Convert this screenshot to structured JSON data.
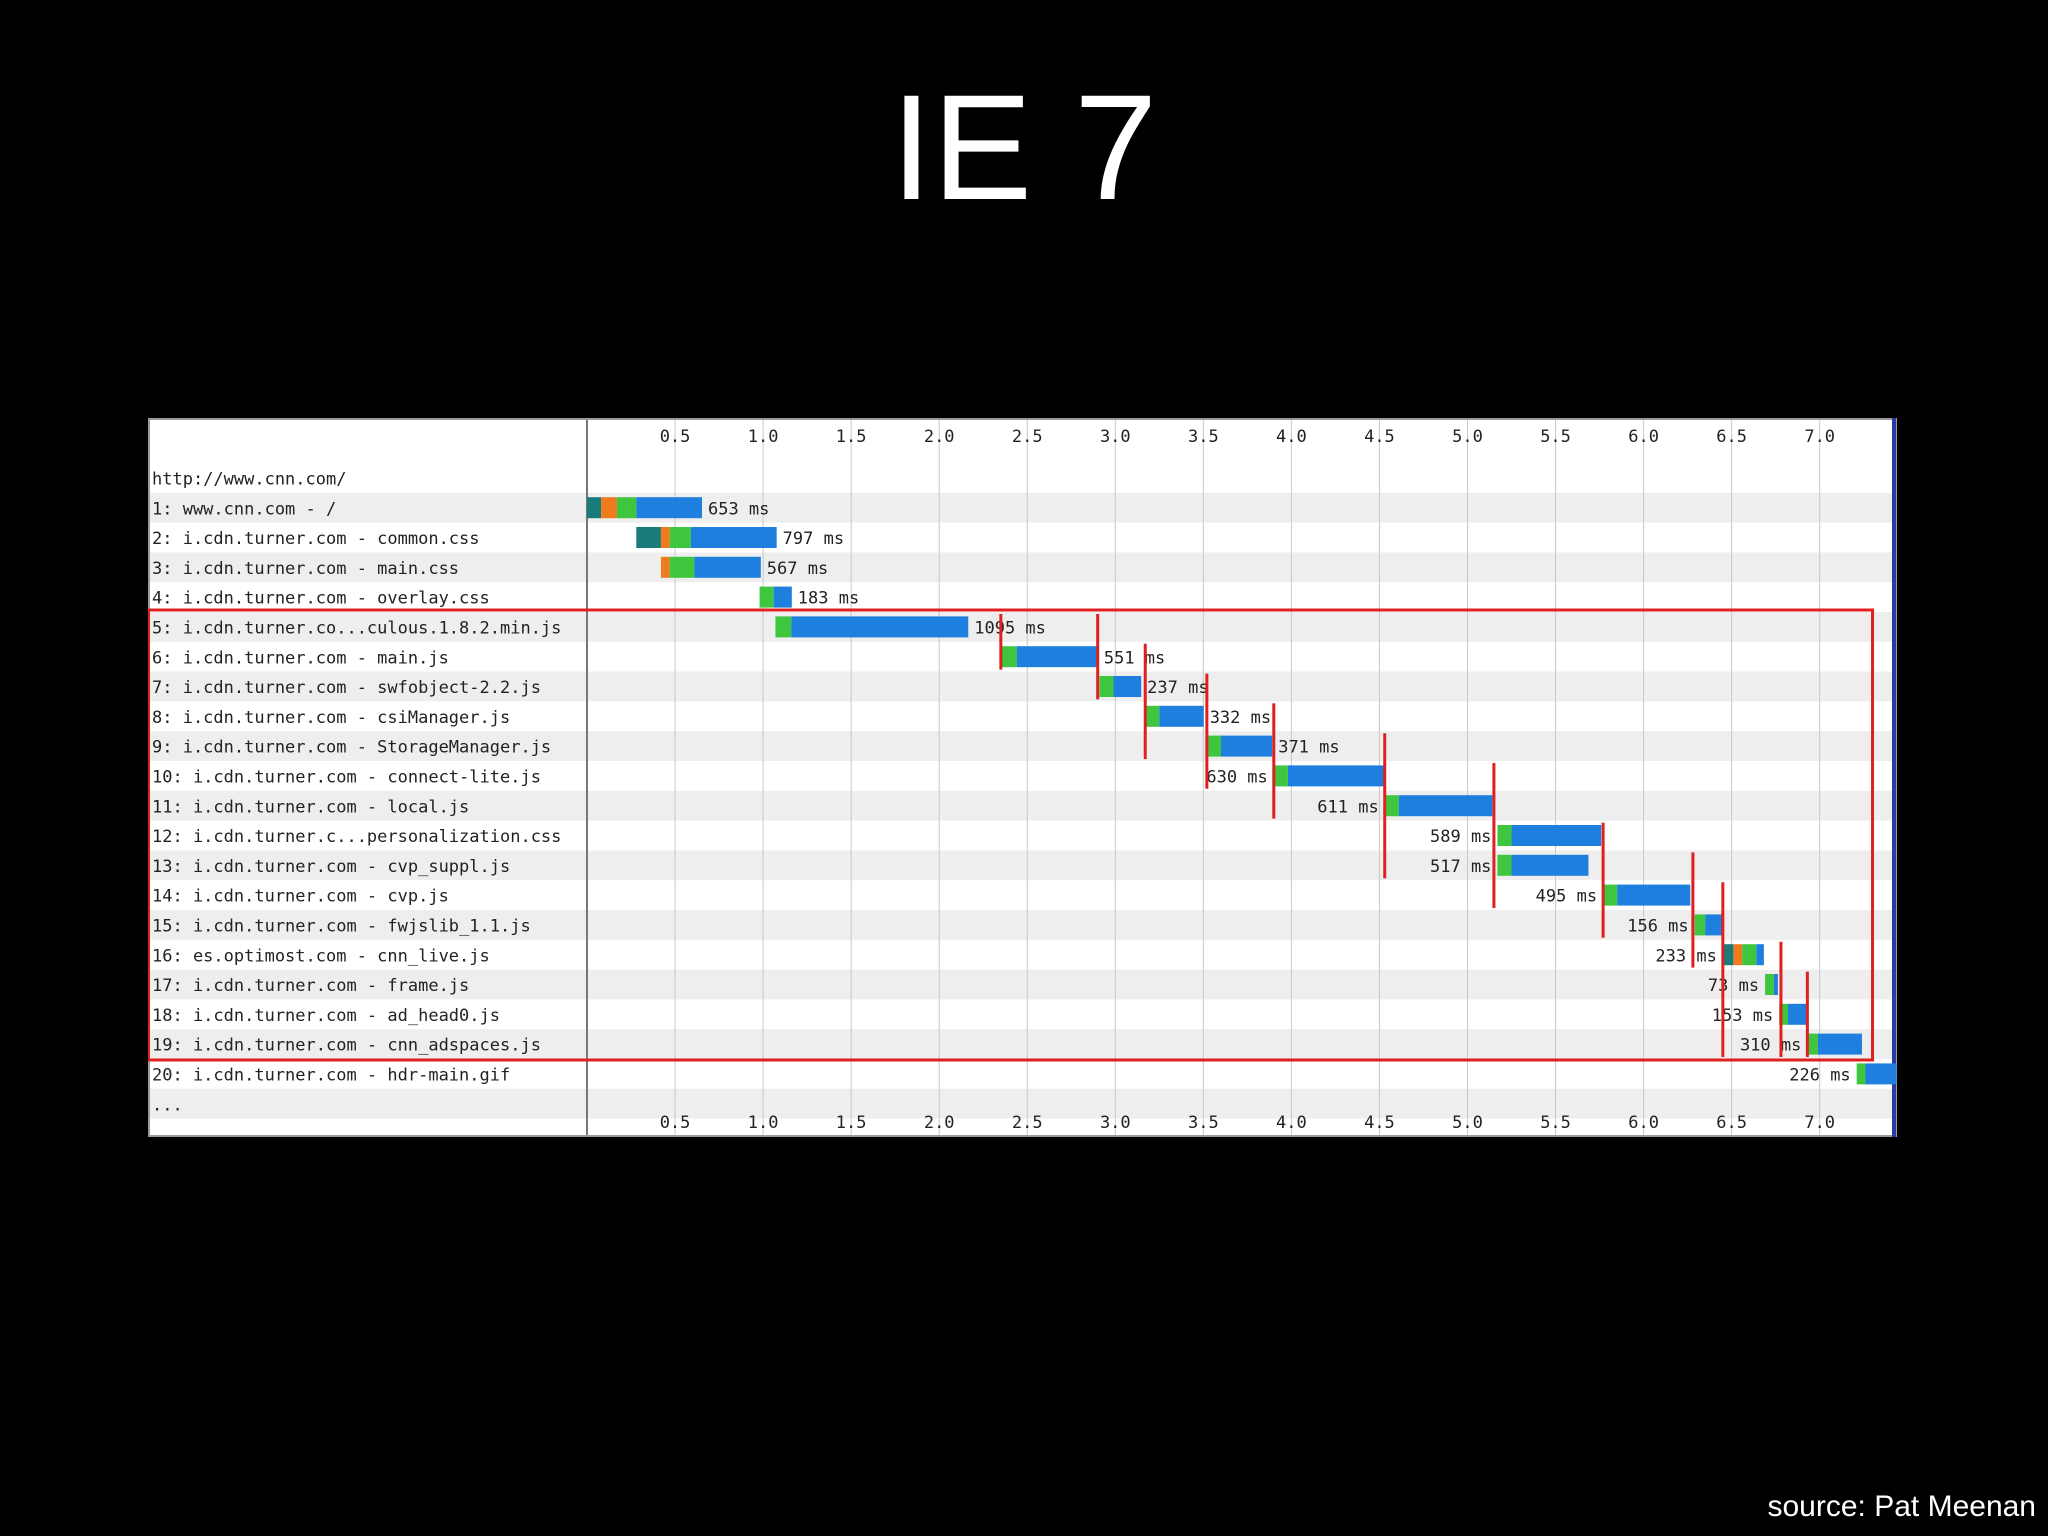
{
  "slide": {
    "title": "IE 7",
    "source": "source: Pat Meenan"
  },
  "chart_data": {
    "type": "waterfall",
    "page_url": "http://www.cnn.com/",
    "xlim": [
      0,
      7.45
    ],
    "x_ticks": [
      "0.5",
      "1.0",
      "1.5",
      "2.0",
      "2.5",
      "3.0",
      "3.5",
      "4.0",
      "4.5",
      "5.0",
      "5.5",
      "6.0",
      "6.5",
      "7.0"
    ],
    "x_unit": "s",
    "grid": true,
    "colors": {
      "dns": "#1a7b7b",
      "connect": "#f07b1e",
      "ttfb": "#3ec63e",
      "download": "#1e7fdf",
      "highlight": "#e02020",
      "row_stripe": "#eeeeee",
      "gridline": "#c8c8c8"
    },
    "requests": [
      {
        "label": "1: www.cnn.com - /",
        "start": 0.0,
        "dns": 0.08,
        "connect": 0.09,
        "ttfb": 0.11,
        "end": 0.653,
        "duration": "653 ms",
        "label_side": "right"
      },
      {
        "label": "2: i.cdn.turner.com - common.css",
        "start": 0.28,
        "dns": 0.14,
        "connect": 0.05,
        "ttfb": 0.12,
        "end": 1.077,
        "duration": "797 ms",
        "label_side": "right"
      },
      {
        "label": "3: i.cdn.turner.com - main.css",
        "start": 0.42,
        "dns": 0.0,
        "connect": 0.05,
        "ttfb": 0.14,
        "end": 0.987,
        "duration": "567 ms",
        "label_side": "right"
      },
      {
        "label": "4: i.cdn.turner.com - overlay.css",
        "start": 0.98,
        "dns": 0.0,
        "connect": 0.0,
        "ttfb": 0.08,
        "end": 1.163,
        "duration": "183 ms",
        "label_side": "right"
      },
      {
        "label": "5: i.cdn.turner.co...culous.1.8.2.min.js",
        "start": 1.07,
        "dns": 0.0,
        "connect": 0.0,
        "ttfb": 0.09,
        "end": 2.165,
        "duration": "1095 ms",
        "label_side": "right"
      },
      {
        "label": "6: i.cdn.turner.com - main.js",
        "start": 2.35,
        "dns": 0.0,
        "connect": 0.0,
        "ttfb": 0.09,
        "end": 2.901,
        "duration": "551 ms",
        "label_side": "right"
      },
      {
        "label": "7: i.cdn.turner.com - swfobject-2.2.js",
        "start": 2.91,
        "dns": 0.0,
        "connect": 0.0,
        "ttfb": 0.08,
        "end": 3.147,
        "duration": "237 ms",
        "label_side": "right"
      },
      {
        "label": "8: i.cdn.turner.com - csiManager.js",
        "start": 3.17,
        "dns": 0.0,
        "connect": 0.0,
        "ttfb": 0.08,
        "end": 3.502,
        "duration": "332 ms",
        "label_side": "right"
      },
      {
        "label": "9: i.cdn.turner.com - StorageManager.js",
        "start": 3.52,
        "dns": 0.0,
        "connect": 0.0,
        "ttfb": 0.08,
        "end": 3.891,
        "duration": "371 ms",
        "label_side": "right"
      },
      {
        "label": "10: i.cdn.turner.com - connect-lite.js",
        "start": 3.9,
        "dns": 0.0,
        "connect": 0.0,
        "ttfb": 0.08,
        "end": 4.53,
        "duration": "630 ms",
        "label_side": "left"
      },
      {
        "label": "11: i.cdn.turner.com - local.js",
        "start": 4.53,
        "dns": 0.0,
        "connect": 0.0,
        "ttfb": 0.08,
        "end": 5.141,
        "duration": "611 ms",
        "label_side": "left"
      },
      {
        "label": "12: i.cdn.turner.c...personalization.css",
        "start": 5.17,
        "dns": 0.0,
        "connect": 0.0,
        "ttfb": 0.08,
        "end": 5.759,
        "duration": "589 ms",
        "label_side": "left"
      },
      {
        "label": "13: i.cdn.turner.com - cvp_suppl.js",
        "start": 5.17,
        "dns": 0.0,
        "connect": 0.0,
        "ttfb": 0.08,
        "end": 5.687,
        "duration": "517 ms",
        "label_side": "left"
      },
      {
        "label": "14: i.cdn.turner.com - cvp.js",
        "start": 5.77,
        "dns": 0.0,
        "connect": 0.0,
        "ttfb": 0.08,
        "end": 6.265,
        "duration": "495 ms",
        "label_side": "left"
      },
      {
        "label": "15: i.cdn.turner.com - fwjslib_1.1.js",
        "start": 6.29,
        "dns": 0.0,
        "connect": 0.0,
        "ttfb": 0.06,
        "end": 6.446,
        "duration": "156 ms",
        "label_side": "left"
      },
      {
        "label": "16: es.optimost.com - cnn_live.js",
        "start": 6.45,
        "dns": 0.06,
        "connect": 0.05,
        "ttfb": 0.08,
        "end": 6.683,
        "duration": "233 ms",
        "label_side": "left"
      },
      {
        "label": "17: i.cdn.turner.com - frame.js",
        "start": 6.69,
        "dns": 0.0,
        "connect": 0.0,
        "ttfb": 0.05,
        "end": 6.763,
        "duration": "73 ms",
        "label_side": "left"
      },
      {
        "label": "18: i.cdn.turner.com - ad_head0.js",
        "start": 6.77,
        "dns": 0.0,
        "connect": 0.0,
        "ttfb": 0.05,
        "end": 6.923,
        "duration": "153 ms",
        "label_side": "left"
      },
      {
        "label": "19: i.cdn.turner.com - cnn_adspaces.js",
        "start": 6.93,
        "dns": 0.0,
        "connect": 0.0,
        "ttfb": 0.06,
        "end": 7.24,
        "duration": "310 ms",
        "label_side": "left"
      },
      {
        "label": "20: i.cdn.turner.com - hdr-main.gif",
        "start": 7.21,
        "dns": 0.0,
        "connect": 0.0,
        "ttfb": 0.05,
        "end": 7.436,
        "duration": "226 ms",
        "label_side": "left"
      }
    ],
    "trailing_row": "...",
    "highlight": {
      "rows": [
        5,
        19
      ],
      "end_time": 7.3,
      "markers": [
        {
          "row_top": 5,
          "row_bottom": 6,
          "time": 2.35
        },
        {
          "row_top": 5,
          "row_bottom": 7,
          "time": 2.9
        },
        {
          "row_top": 6,
          "row_bottom": 9,
          "time": 3.17
        },
        {
          "row_top": 7,
          "row_bottom": 10,
          "time": 3.52
        },
        {
          "row_top": 8,
          "row_bottom": 11,
          "time": 3.9
        },
        {
          "row_top": 9,
          "row_bottom": 13,
          "time": 4.53
        },
        {
          "row_top": 10,
          "row_bottom": 14,
          "time": 5.15
        },
        {
          "row_top": 12,
          "row_bottom": 15,
          "time": 5.77
        },
        {
          "row_top": 13,
          "row_bottom": 16,
          "time": 6.28
        },
        {
          "row_top": 14,
          "row_bottom": 19,
          "time": 6.45
        },
        {
          "row_top": 16,
          "row_bottom": 19,
          "time": 6.78
        },
        {
          "row_top": 17,
          "row_bottom": 19,
          "time": 6.93
        }
      ]
    }
  }
}
